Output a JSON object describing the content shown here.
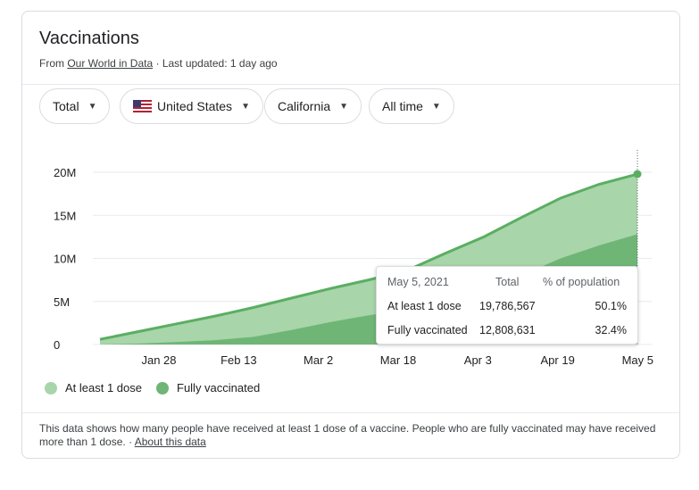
{
  "card": {
    "title": "Vaccinations",
    "source_prefix": "From ",
    "source_link": "Our World in Data",
    "updated": " · Last updated: 1 day ago"
  },
  "filters": [
    {
      "label": "Total"
    },
    {
      "label": "United States",
      "icon": "us-flag-icon"
    },
    {
      "label": "California"
    },
    {
      "label": "All time"
    }
  ],
  "chart_data": {
    "type": "area",
    "x_ticks": [
      "Jan 28",
      "Feb 13",
      "Mar 2",
      "Mar 18",
      "Apr 3",
      "Apr 19",
      "May 5"
    ],
    "y_ticks": [
      "0",
      "5M",
      "10M",
      "15M",
      "20M"
    ],
    "ylim": [
      0,
      20000000
    ],
    "grid": true,
    "legend_position": "bottom-left",
    "x": [
      "Jan 12",
      "Jan 20",
      "Jan 28",
      "Feb 5",
      "Feb 13",
      "Feb 21",
      "Mar 2",
      "Mar 10",
      "Mar 18",
      "Mar 26",
      "Apr 3",
      "Apr 11",
      "Apr 19",
      "Apr 27",
      "May 5"
    ],
    "series": [
      {
        "name": "At least 1 dose",
        "color": "#a8d5a9",
        "values": [
          600000,
          1500000,
          2400000,
          3300000,
          4300000,
          5400000,
          6500000,
          7500000,
          8600000,
          10600000,
          12500000,
          14800000,
          17000000,
          18600000,
          19786567
        ]
      },
      {
        "name": "Fully vaccinated",
        "color": "#6fb676",
        "values": [
          0,
          100000,
          300000,
          500000,
          900000,
          1700000,
          2600000,
          3400000,
          4000000,
          4800000,
          6000000,
          8100000,
          10000000,
          11500000,
          12808631
        ]
      }
    ],
    "line_color": "#5aae62",
    "tooltip": {
      "date": "May 5, 2021",
      "col_total": "Total",
      "col_pct": "% of population",
      "rows": [
        {
          "label": "At least 1 dose",
          "total": "19,786,567",
          "pct": "50.1%"
        },
        {
          "label": "Fully vaccinated",
          "total": "12,808,631",
          "pct": "32.4%"
        }
      ]
    }
  },
  "footer": {
    "text": "This data shows how many people have received at least 1 dose of a vaccine. People who are fully vaccinated may have received more than 1 dose.",
    "separator": " · ",
    "link": "About this data"
  }
}
